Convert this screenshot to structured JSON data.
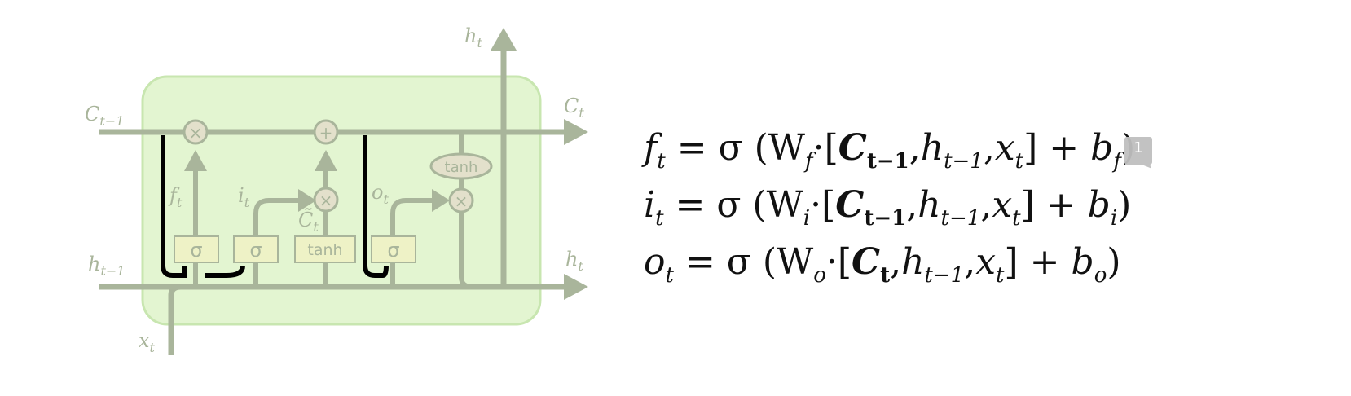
{
  "diagram": {
    "labels": {
      "c_prev": "C",
      "c_prev_sub": "t−1",
      "c_t": "C",
      "c_t_sub": "t",
      "h_prev": "h",
      "h_prev_sub": "t−1",
      "h_t_top": "h",
      "h_t_top_sub": "t",
      "h_t_right": "h",
      "h_t_right_sub": "t",
      "x_t": "x",
      "x_t_sub": "t",
      "f_t": "f",
      "f_t_sub": "t",
      "i_t": "i",
      "i_t_sub": "t",
      "c_tilde": "C̃",
      "c_tilde_sub": "t",
      "o_t": "o",
      "o_t_sub": "t"
    },
    "gates": {
      "sigma1": "σ",
      "sigma2": "σ",
      "tanh": "tanh",
      "sigma3": "σ",
      "tanh_out": "tanh"
    },
    "ops": {
      "mult1": "×",
      "add": "+",
      "mult2": "×",
      "mult3": "×"
    },
    "colors": {
      "cell_fill": "#e3f5d1",
      "cell_stroke": "#c8e6b0",
      "line": "#a9b59b",
      "gate_fill": "#eef2c6",
      "peephole": "#000000"
    }
  },
  "equations": {
    "f": {
      "lhs": "f",
      "lhs_sub": "t",
      "eq": "= σ (W",
      "w_sub": "f",
      "dot": "·[",
      "c": "C",
      "c_sub": "t−1",
      "comma1": ",",
      "h": "h",
      "h_sub": "t−1",
      "comma2": ",",
      "x": "x",
      "x_sub": "t",
      "close": "]",
      "plus": "+",
      "b": "b",
      "b_sub": "f",
      "end": ")"
    },
    "i": {
      "lhs": "i",
      "lhs_sub": "t",
      "eq": "= σ (W",
      "w_sub": "i",
      "dot": "·[",
      "c": "C",
      "c_sub": "t−1",
      "comma1": ",",
      "h": "h",
      "h_sub": "t−1",
      "comma2": ",",
      "x": "x",
      "x_sub": "t",
      "close": "]",
      "plus": "+",
      "b": "b",
      "b_sub": "i",
      "end": ")"
    },
    "o": {
      "lhs": "o",
      "lhs_sub": "t",
      "eq": "= σ (W",
      "w_sub": "o",
      "dot": "·[",
      "c": "C",
      "c_sub": "t",
      "comma1": ",",
      "h": "h",
      "h_sub": "t−1",
      "comma2": ",",
      "x": "x",
      "x_sub": "t",
      "close": "]",
      "plus": "+",
      "b": "b",
      "b_sub": "o",
      "end": ")"
    },
    "badge": "1"
  }
}
